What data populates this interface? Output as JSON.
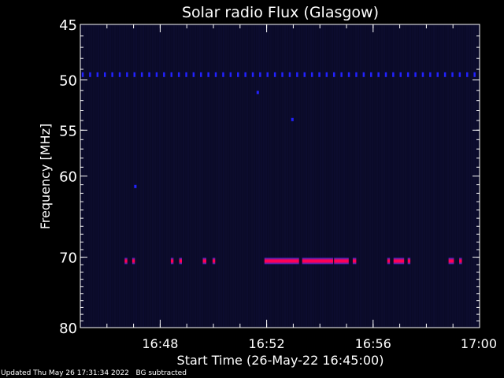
{
  "chart_data": {
    "type": "heatmap",
    "title": "Solar radio Flux (Glasgow)",
    "xlabel": "Start Time (26-May-22 16:45:00)",
    "ylabel": "Frequency [MHz]",
    "xlim": [
      "16:45:00",
      "17:00:00"
    ],
    "ylim": [
      45,
      80
    ],
    "y_scale": "log",
    "x_ticks": [
      "16:48",
      "16:52",
      "16:56",
      "17:00"
    ],
    "y_ticks": [
      45,
      50,
      55,
      60,
      70,
      80
    ],
    "background_color": "#0a0a28",
    "colors": {
      "background": "#000000",
      "axes": "#ffffff",
      "plot_bg": "#0a0a28",
      "carrier": "#2222ff",
      "band_core": "#ff0055",
      "band_edge": "#2b2bd0"
    },
    "steady_line": {
      "frequency_mhz": 49.5,
      "start": "16:45:00",
      "end": "17:00:00",
      "style": "dotted",
      "color": "#2222ff"
    },
    "spots": [
      {
        "time": "16:51:40",
        "frequency_mhz": 51.2
      },
      {
        "time": "16:52:58",
        "frequency_mhz": 53.9
      },
      {
        "time": "16:47:04",
        "frequency_mhz": 61.2
      }
    ],
    "bursts": [
      {
        "frequency_mhz": 70.5,
        "start": "16:46:40",
        "end": "16:46:46"
      },
      {
        "frequency_mhz": 70.5,
        "start": "16:46:57",
        "end": "16:47:03"
      },
      {
        "frequency_mhz": 70.5,
        "start": "16:48:24",
        "end": "16:48:30"
      },
      {
        "frequency_mhz": 70.5,
        "start": "16:48:43",
        "end": "16:48:49"
      },
      {
        "frequency_mhz": 70.5,
        "start": "16:49:36",
        "end": "16:49:44"
      },
      {
        "frequency_mhz": 70.5,
        "start": "16:49:58",
        "end": "16:50:04"
      },
      {
        "frequency_mhz": 70.5,
        "start": "16:51:55",
        "end": "16:53:13"
      },
      {
        "frequency_mhz": 70.5,
        "start": "16:53:20",
        "end": "16:54:30"
      },
      {
        "frequency_mhz": 70.5,
        "start": "16:54:32",
        "end": "16:55:05"
      },
      {
        "frequency_mhz": 70.5,
        "start": "16:55:14",
        "end": "16:55:22"
      },
      {
        "frequency_mhz": 70.5,
        "start": "16:56:32",
        "end": "16:56:38"
      },
      {
        "frequency_mhz": 70.5,
        "start": "16:56:46",
        "end": "16:57:10"
      },
      {
        "frequency_mhz": 70.5,
        "start": "16:57:18",
        "end": "16:57:24"
      },
      {
        "frequency_mhz": 70.5,
        "start": "16:58:50",
        "end": "16:59:02"
      },
      {
        "frequency_mhz": 70.5,
        "start": "16:59:14",
        "end": "16:59:20"
      }
    ]
  },
  "footer": {
    "updated": "Updated Thu May 26 17:31:34 2022",
    "note": "BG subtracted"
  }
}
